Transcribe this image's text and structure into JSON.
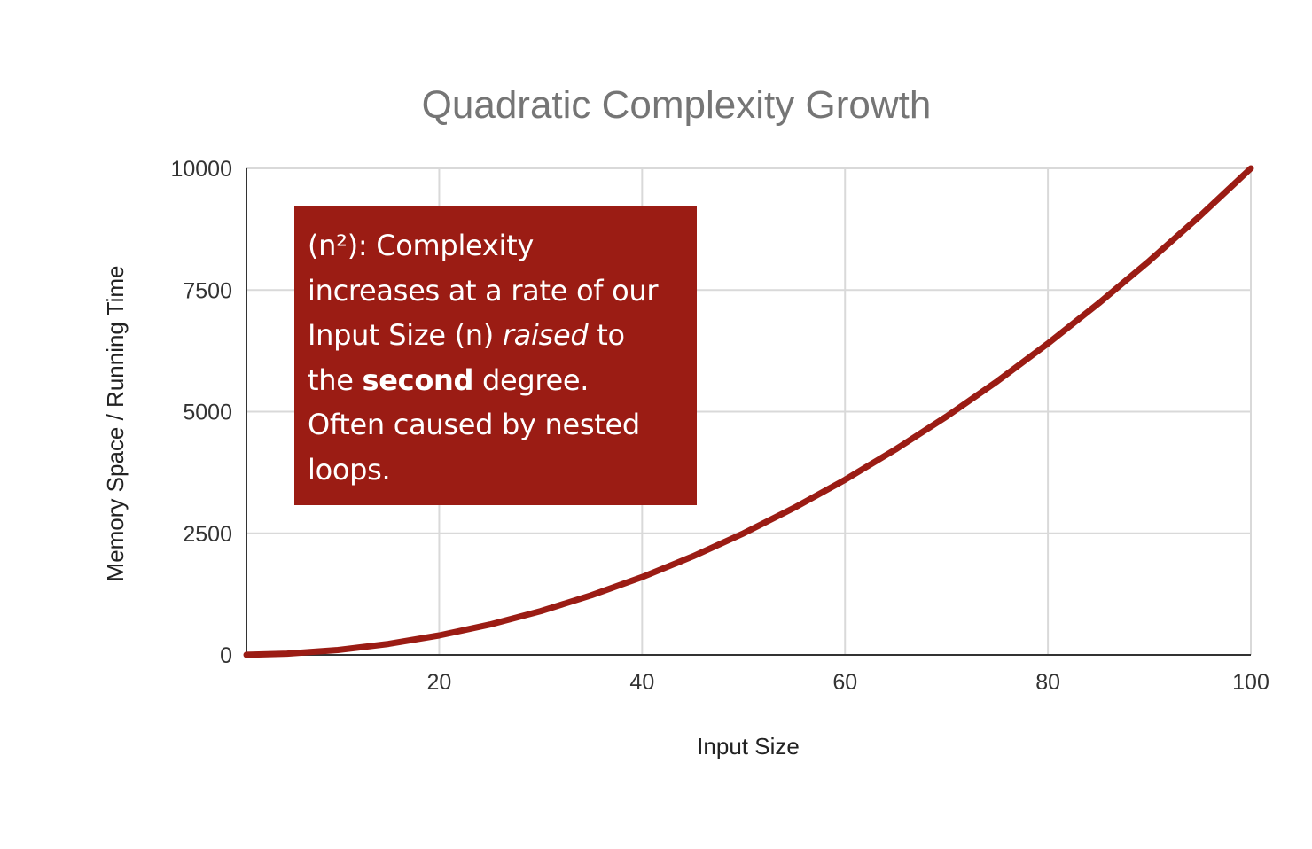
{
  "chart_data": {
    "type": "line",
    "title": "Quadratic Complexity Growth",
    "xlabel": "Input Size",
    "ylabel": "Memory Space / Running Time",
    "xlim": [
      1,
      100
    ],
    "ylim": [
      0,
      10000
    ],
    "x_ticks": [
      "20",
      "40",
      "60",
      "80",
      "100"
    ],
    "y_ticks": [
      "0",
      "2500",
      "5000",
      "7500",
      "10000"
    ],
    "grid": true,
    "legend": "none",
    "series": [
      {
        "color": "#9b1c14",
        "x": [
          1,
          5,
          10,
          15,
          20,
          25,
          30,
          35,
          40,
          45,
          50,
          55,
          60,
          65,
          70,
          75,
          80,
          85,
          90,
          95,
          100
        ],
        "values": [
          1,
          25,
          100,
          225,
          400,
          625,
          900,
          1225,
          1600,
          2025,
          2500,
          3025,
          3600,
          4225,
          4900,
          5625,
          6400,
          7225,
          8100,
          9025,
          10000
        ]
      }
    ],
    "annotation": {
      "background": "#9b1c14",
      "line1": "(n²): Complexity",
      "line2": "increases at a rate of our",
      "line3_a": "Input Size (n) ",
      "line3_b": "raised",
      "line3_c": " to",
      "line4_a": "the ",
      "line4_b": "second",
      "line4_c": " degree.",
      "line5": "Often caused by nested",
      "line6": "loops."
    }
  }
}
